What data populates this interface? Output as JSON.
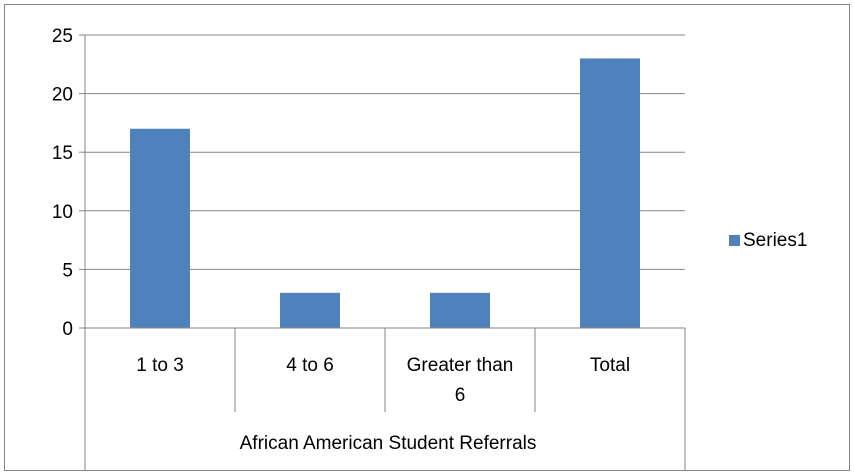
{
  "chart_data": {
    "type": "bar",
    "categories": [
      "1 to 3",
      "4 to 6",
      "Greater than 6",
      "Total"
    ],
    "category_display_lines": [
      [
        "1 to 3"
      ],
      [
        "4 to 6"
      ],
      [
        "Greater than",
        "6"
      ],
      [
        "Total"
      ]
    ],
    "group_label": "African American Student Referrals",
    "series": [
      {
        "name": "Series1",
        "values": [
          17,
          3,
          3,
          23
        ]
      }
    ],
    "ylim": [
      0,
      25
    ],
    "yticks": [
      0,
      5,
      10,
      15,
      20,
      25
    ],
    "grid": true,
    "legend_position": "right",
    "bar_color": "#4f81bd"
  }
}
